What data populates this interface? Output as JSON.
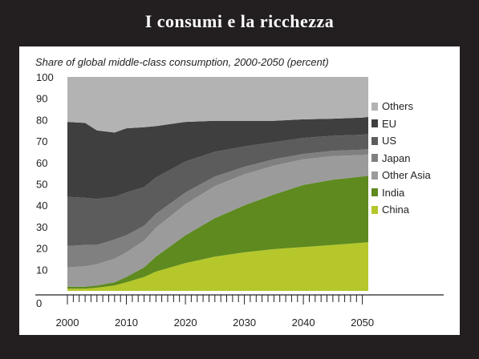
{
  "title": "I consumi e la ricchezza",
  "chart_data": {
    "type": "area",
    "stacked": true,
    "title": "Share of global middle-class consumption, 2000-2050 (percent)",
    "xlabel": "",
    "ylabel": "",
    "xlim": [
      2000,
      2051
    ],
    "ylim": [
      0,
      100
    ],
    "x": [
      2000,
      2003,
      2005,
      2008,
      2010,
      2013,
      2015,
      2020,
      2025,
      2030,
      2035,
      2040,
      2045,
      2050,
      2051
    ],
    "x_ticks": [
      2000,
      2010,
      2020,
      2030,
      2040,
      2050
    ],
    "y_ticks": [
      0,
      10,
      20,
      30,
      40,
      50,
      60,
      70,
      80,
      90,
      100
    ],
    "grid": false,
    "legend_position": "right",
    "series": [
      {
        "name": "China",
        "color": "#b5c72a",
        "values": [
          1,
          1,
          1.5,
          2.5,
          4,
          6.5,
          9,
          13,
          16,
          18,
          19.5,
          20.5,
          21.5,
          22.5,
          22.8
        ]
      },
      {
        "name": "India",
        "color": "#5e8a1f",
        "values": [
          1,
          1,
          1,
          1.5,
          2.5,
          4.5,
          7,
          13,
          18,
          22,
          25.5,
          29,
          30.5,
          31,
          31
        ]
      },
      {
        "name": "Other Asia",
        "color": "#9b9b9b",
        "values": [
          9,
          9.5,
          10,
          11,
          11.5,
          12.5,
          13.5,
          14.5,
          15,
          14.5,
          13.5,
          12,
          11,
          10,
          10
        ]
      },
      {
        "name": "Japan",
        "color": "#808080",
        "values": [
          10,
          10,
          9,
          9,
          8,
          7,
          6.5,
          5.5,
          4.5,
          3.5,
          3,
          2.5,
          2.5,
          2.5,
          2.5
        ]
      },
      {
        "name": "US",
        "color": "#5c5c5c",
        "values": [
          23,
          22,
          21.5,
          20,
          20,
          18,
          17,
          14.5,
          11.5,
          9.5,
          8,
          7.5,
          7,
          7,
          7
        ]
      },
      {
        "name": "EU",
        "color": "#3f3f3f",
        "values": [
          35,
          35,
          32,
          30,
          30,
          28,
          24,
          18.5,
          14.5,
          12,
          10,
          8.7,
          8,
          8,
          8
        ]
      },
      {
        "name": "Others",
        "color": "#b3b3b3",
        "values": [
          21,
          21.5,
          25,
          26,
          24,
          23.5,
          23,
          21,
          20.5,
          20.5,
          20.5,
          19.8,
          19.5,
          19,
          18.7
        ]
      }
    ]
  }
}
